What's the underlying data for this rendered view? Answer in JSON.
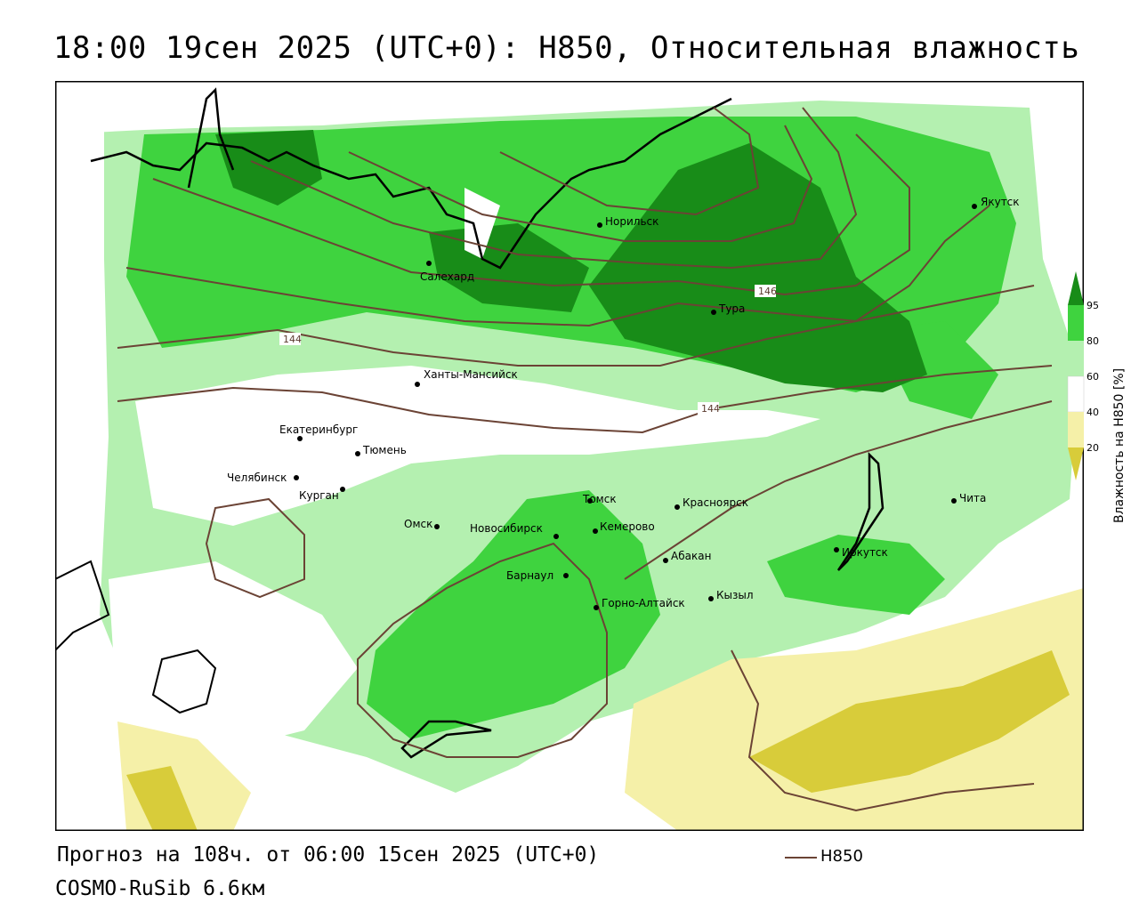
{
  "title": "18:00 19сен 2025 (UTC+0): H850, Относительная влажность",
  "footer": {
    "forecast": "Прогноз на 108ч. от 06:00 15сен 2025 (UTC+0)",
    "model": "COSMO-RuSib 6.6км",
    "legend_label": "H850"
  },
  "colorbar": {
    "title": "Влажность на H850 [%]",
    "ticks": [
      "95",
      "80",
      "60",
      "40",
      "20"
    ],
    "colors": {
      "c95": "#188c18",
      "c80": "#3fd33f",
      "c60": "#b4f0b0",
      "c40": "#ffffff",
      "c20": "#f5f0a8",
      "c0": "#d8cc3a"
    }
  },
  "colors": {
    "contour": "#6b4335",
    "coast": "#000000",
    "borders": "#222222"
  },
  "contour_labels": [
    "144",
    "144",
    "146"
  ],
  "cities": [
    {
      "name": "Якутск"
    },
    {
      "name": "Норильск"
    },
    {
      "name": "Салехард"
    },
    {
      "name": "Тура"
    },
    {
      "name": "Ханты-Мансийск"
    },
    {
      "name": "Екатеринбург"
    },
    {
      "name": "Тюмень"
    },
    {
      "name": "Челябинск"
    },
    {
      "name": "Курган"
    },
    {
      "name": "Омск"
    },
    {
      "name": "Новосибирск"
    },
    {
      "name": "Томск"
    },
    {
      "name": "Кемерово"
    },
    {
      "name": "Красноярск"
    },
    {
      "name": "Абакан"
    },
    {
      "name": "Барнаул"
    },
    {
      "name": "Горно-Алтайск"
    },
    {
      "name": "Кызыл"
    },
    {
      "name": "Иркутск"
    },
    {
      "name": "Чита"
    }
  ]
}
